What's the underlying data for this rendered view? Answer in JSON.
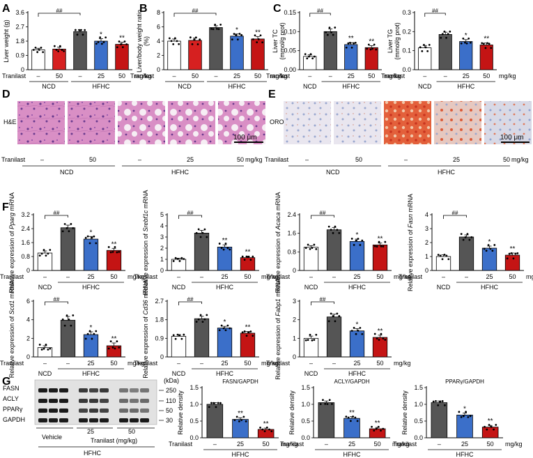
{
  "colors": {
    "ncd": "#ffffff",
    "ncd50": "#d62020",
    "hfhc": "#555555",
    "t25": "#3b6fc9",
    "t50": "#c41414"
  },
  "panel_labels": [
    "A",
    "B",
    "C",
    "D",
    "E",
    "F",
    "G"
  ],
  "common": {
    "tranilast": "Tranilast",
    "ncd": "NCD",
    "hfhc": "HFHC",
    "dash": "–",
    "d25": "25",
    "d50": "50",
    "unit": "mg/kg",
    "sig_hash": "##",
    "sig1": "*",
    "sig2": "**"
  },
  "histology": {
    "he_label": "H&E",
    "oro_label": "ORO",
    "scale_bar": "100 μm"
  },
  "blot": {
    "kda": "(kDa)",
    "bands": [
      "FASN",
      "ACLY",
      "PPARγ",
      "GAPDH"
    ],
    "sizes": [
      "250",
      "110",
      "50",
      "30"
    ],
    "vehicle": "Vehicle",
    "tranilast_mgkg": "Tranilast (mg/kg)",
    "d25": "25",
    "d50": "50",
    "hfhc": "HFHC"
  },
  "chart_data": [
    {
      "id": "A",
      "type": "bar",
      "ylabel": "Liver weight (g)",
      "ylim": [
        0,
        3.6
      ],
      "yticks": [
        "0",
        "0.9",
        "1.8",
        "2.7",
        "3.6"
      ],
      "values": [
        1.25,
        1.3,
        2.4,
        1.8,
        1.6
      ],
      "errors": [
        0.1,
        0.12,
        0.12,
        0.15,
        0.13
      ],
      "groups": [
        "ncd",
        "ncd50",
        "hfhc",
        "t25",
        "t50"
      ],
      "sig": [
        "",
        "",
        "",
        "*",
        "**"
      ]
    },
    {
      "id": "B",
      "type": "bar",
      "ylabel": "Liver/body weight ratio (%)",
      "ylim": [
        0,
        8
      ],
      "yticks": [
        "0",
        "2",
        "4",
        "6",
        "8"
      ],
      "values": [
        4.0,
        4.1,
        5.9,
        4.7,
        4.3
      ],
      "errors": [
        0.3,
        0.35,
        0.25,
        0.3,
        0.35
      ],
      "groups": [
        "ncd",
        "ncd50",
        "hfhc",
        "t25",
        "t50"
      ],
      "sig": [
        "",
        "",
        "",
        "*",
        "**"
      ]
    },
    {
      "id": "C1",
      "type": "bar",
      "ylabel": "Liver TC (mmol/g prot)",
      "ylim": [
        0,
        0.15
      ],
      "yticks": [
        "0.00",
        "0.05",
        "0.10",
        "0.15"
      ],
      "values": [
        0.035,
        0.1,
        0.066,
        0.058
      ],
      "errors": [
        0.004,
        0.007,
        0.005,
        0.005
      ],
      "groups": [
        "ncd",
        "hfhc",
        "t25",
        "t50"
      ],
      "sig": [
        "",
        "",
        "**",
        "**"
      ]
    },
    {
      "id": "C2",
      "type": "bar",
      "ylabel": "Liver TG (mmol/g prot)",
      "ylim": [
        0,
        0.3
      ],
      "yticks": [
        "0.0",
        "0.1",
        "0.2",
        "0.3"
      ],
      "values": [
        0.115,
        0.185,
        0.148,
        0.13
      ],
      "errors": [
        0.012,
        0.012,
        0.01,
        0.01
      ],
      "groups": [
        "ncd",
        "hfhc",
        "t25",
        "t50"
      ],
      "sig": [
        "",
        "",
        "*",
        "**"
      ]
    },
    {
      "id": "F1",
      "type": "bar",
      "ylabel": "Relative expression of",
      "gene": "Pparg",
      "ylabel2": " mRNA",
      "ylim": [
        0,
        3.2
      ],
      "yticks": [
        "0",
        "0.8",
        "1.6",
        "2.4",
        "3.2"
      ],
      "values": [
        1.0,
        2.45,
        1.8,
        1.15
      ],
      "errors": [
        0.12,
        0.15,
        0.15,
        0.12
      ],
      "groups": [
        "ncd",
        "hfhc",
        "t25",
        "t50"
      ],
      "sig": [
        "",
        "",
        "*",
        "**"
      ]
    },
    {
      "id": "F2",
      "type": "bar",
      "ylabel": "Relative expression of",
      "gene": "Srebf1c",
      "ylabel2": " mRNA",
      "ylim": [
        0,
        5
      ],
      "yticks": [
        "0",
        "1",
        "2",
        "3",
        "4",
        "5"
      ],
      "values": [
        1.0,
        3.35,
        2.1,
        1.15
      ],
      "errors": [
        0.1,
        0.25,
        0.2,
        0.12
      ],
      "groups": [
        "ncd",
        "hfhc",
        "t25",
        "t50"
      ],
      "sig": [
        "",
        "",
        "**",
        "**"
      ]
    },
    {
      "id": "F3",
      "type": "bar",
      "ylabel": "Relative expression of",
      "gene": "Acaca",
      "ylabel2": " mRNA",
      "ylim": [
        0,
        2.4
      ],
      "yticks": [
        "0",
        "0.8",
        "1.6",
        "2.4"
      ],
      "values": [
        1.0,
        1.75,
        1.25,
        1.1
      ],
      "errors": [
        0.07,
        0.1,
        0.1,
        0.08
      ],
      "groups": [
        "ncd",
        "hfhc",
        "t25",
        "t50"
      ],
      "sig": [
        "",
        "",
        "*",
        "**"
      ]
    },
    {
      "id": "F4",
      "type": "bar",
      "ylabel": "Relative expression of",
      "gene": "Fasn",
      "ylabel2": " mRNA",
      "ylim": [
        0,
        4
      ],
      "yticks": [
        "0",
        "1",
        "2",
        "3",
        "4"
      ],
      "values": [
        1.0,
        2.4,
        1.6,
        1.1
      ],
      "errors": [
        0.12,
        0.15,
        0.15,
        0.15
      ],
      "groups": [
        "ncd",
        "hfhc",
        "t25",
        "t50"
      ],
      "sig": [
        "",
        "",
        "*",
        "**"
      ]
    },
    {
      "id": "F5",
      "type": "bar",
      "ylabel": "Relative expression of",
      "gene": "Scd1",
      "ylabel2": " mRNA",
      "ylim": [
        0,
        6
      ],
      "yticks": [
        "0",
        "2",
        "4",
        "6"
      ],
      "values": [
        1.0,
        3.95,
        2.4,
        1.2
      ],
      "errors": [
        0.2,
        0.4,
        0.3,
        0.3
      ],
      "groups": [
        "ncd",
        "hfhc",
        "t25",
        "t50"
      ],
      "sig": [
        "",
        "",
        "*",
        "**"
      ]
    },
    {
      "id": "F6",
      "type": "bar",
      "ylabel": "Relative expression of",
      "gene": "Cd36",
      "ylabel2": " mRNA",
      "ylim": [
        0,
        2.7
      ],
      "yticks": [
        "0",
        "0.9",
        "1.8",
        "2.7"
      ],
      "values": [
        1.0,
        1.85,
        1.4,
        1.15
      ],
      "errors": [
        0.08,
        0.12,
        0.08,
        0.08
      ],
      "groups": [
        "ncd",
        "hfhc",
        "t25",
        "t50"
      ],
      "sig": [
        "",
        "",
        "*",
        "**"
      ]
    },
    {
      "id": "F7",
      "type": "bar",
      "ylabel": "Relative expression of",
      "gene": "Fabp1",
      "ylabel2": " mRNA",
      "ylim": [
        0,
        3
      ],
      "yticks": [
        "0",
        "1",
        "2",
        "3"
      ],
      "values": [
        1.0,
        2.15,
        1.4,
        1.05
      ],
      "errors": [
        0.12,
        0.15,
        0.12,
        0.12
      ],
      "groups": [
        "ncd",
        "hfhc",
        "t25",
        "t50"
      ],
      "sig": [
        "",
        "",
        "*",
        "**"
      ]
    },
    {
      "id": "G1",
      "type": "bar",
      "title": "FASN/GAPDH",
      "ylabel": "Relative density",
      "ylim": [
        0,
        1.5
      ],
      "yticks": [
        "0.0",
        "0.5",
        "1.0",
        "1.5"
      ],
      "values": [
        1.0,
        0.55,
        0.25
      ],
      "errors": [
        0.05,
        0.05,
        0.04
      ],
      "groups": [
        "hfhc",
        "t25",
        "t50"
      ],
      "sig": [
        "",
        "**",
        "**"
      ]
    },
    {
      "id": "G2",
      "type": "bar",
      "title": "ACLY/GAPDH",
      "ylabel": "Relative density",
      "ylim": [
        0,
        1.5
      ],
      "yticks": [
        "0.0",
        "0.5",
        "1.0",
        "1.5"
      ],
      "values": [
        1.05,
        0.58,
        0.27
      ],
      "errors": [
        0.05,
        0.05,
        0.04
      ],
      "groups": [
        "hfhc",
        "t25",
        "t50"
      ],
      "sig": [
        "",
        "**",
        "**"
      ]
    },
    {
      "id": "G3",
      "type": "bar",
      "title": "PPARγ/GAPDH",
      "ylabel": "Relative density",
      "ylim": [
        0,
        1.5
      ],
      "yticks": [
        "0.0",
        "0.5",
        "1.0",
        "1.5"
      ],
      "values": [
        1.05,
        0.68,
        0.32
      ],
      "errors": [
        0.05,
        0.06,
        0.05
      ],
      "groups": [
        "hfhc",
        "t25",
        "t50"
      ],
      "sig": [
        "",
        "*",
        "**"
      ]
    }
  ]
}
